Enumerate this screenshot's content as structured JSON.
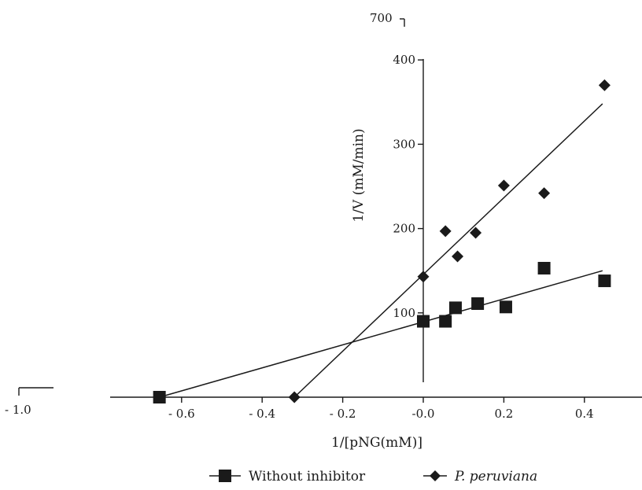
{
  "chart_data": {
    "type": "scatter",
    "title": "",
    "xlabel": "1/[pNG(mM)]",
    "ylabel": "1/V (mM/min)",
    "xlim": [
      -0.7,
      0.47
    ],
    "ylim": [
      0,
      400
    ],
    "x_ticks": [
      "- 0.6",
      "- 0.4",
      "- 0.2",
      "-0.0",
      "0.2",
      "0.4"
    ],
    "y_ticks": [
      "100",
      "200",
      "300",
      "400"
    ],
    "stray_labels": {
      "top_tick": "700",
      "left_tick": "- 1.0"
    },
    "grid": false,
    "legend_position": "bottom",
    "series": [
      {
        "name": "Without inhibitor",
        "marker": "square",
        "color": "#1a1a1a",
        "x": [
          -0.655,
          0.0,
          0.055,
          0.08,
          0.135,
          0.205,
          0.3,
          0.45
        ],
        "y": [
          0,
          90,
          90,
          106,
          111,
          107,
          153,
          138
        ],
        "fit_line": {
          "x": [
            -0.655,
            0.445
          ],
          "y": [
            0,
            150
          ]
        }
      },
      {
        "name": "P. peruviana",
        "marker": "diamond",
        "color": "#1a1a1a",
        "x": [
          -0.32,
          0.0,
          0.055,
          0.085,
          0.13,
          0.2,
          0.3,
          0.45
        ],
        "y": [
          0,
          143,
          197,
          167,
          195,
          251,
          242,
          370
        ],
        "fit_line": {
          "x": [
            -0.32,
            0.445
          ],
          "y": [
            0,
            348
          ]
        }
      }
    ]
  }
}
